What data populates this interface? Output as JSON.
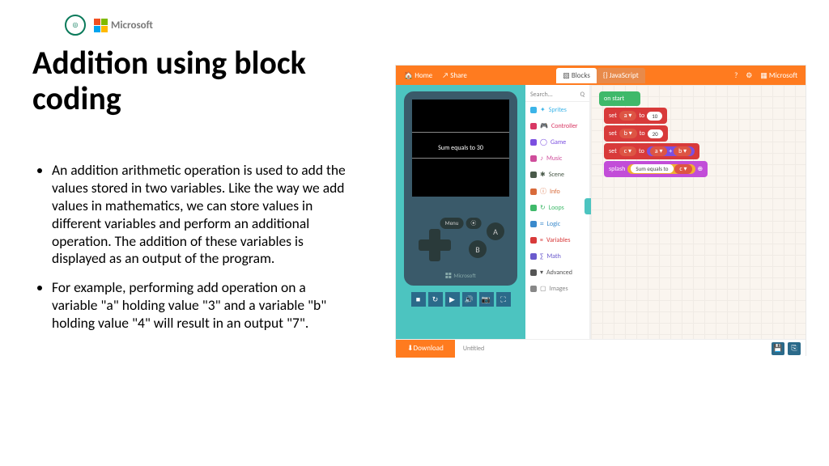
{
  "header": {
    "ms_text": "Microsoft"
  },
  "title": "Addition using block coding",
  "bullets": [
    "An addition arithmetic operation is used to add the values stored in two variables. Like the way we add values in mathematics, we can store values in different variables and perform an additional operation. The addition of these variables is displayed as an output of the program.",
    "For example, performing add operation on a variable \"a\" holding value \"3\" and a variable \"b\" holding value \"4\" will result in an output \"7\"."
  ],
  "shot": {
    "top_left": [
      {
        "icon": "🏠",
        "label": "Home"
      },
      {
        "icon": "↗",
        "label": "Share"
      }
    ],
    "tabs": [
      {
        "icon": "▧",
        "label": "Blocks",
        "active": true
      },
      {
        "icon": "{}",
        "label": "JavaScript",
        "active": false
      }
    ],
    "top_right_icons": [
      "?",
      "⚙"
    ],
    "top_right_ms": "Microsoft",
    "screen_text": "Sum equals to 30",
    "menu_label": "Menu",
    "ms_foot": "Microsoft",
    "toolstrip_icons": [
      "■",
      "↻",
      "▶",
      "🔊",
      "📷",
      "⛶"
    ],
    "search_label": "Search...",
    "search_icon": "Q",
    "categories": [
      {
        "label": "Sprites",
        "color": "#3cb4e8",
        "icon": "✦"
      },
      {
        "label": "Controller",
        "color": "#d83763",
        "icon": "🎮"
      },
      {
        "label": "Game",
        "color": "#7b4fe0",
        "icon": "◯"
      },
      {
        "label": "Music",
        "color": "#cf4d9b",
        "icon": "♪"
      },
      {
        "label": "Scene",
        "color": "#4a5a4a",
        "icon": "✱"
      },
      {
        "label": "Info",
        "color": "#d86a3a",
        "icon": "ⓘ"
      },
      {
        "label": "Loops",
        "color": "#3fb96a",
        "icon": "↻"
      },
      {
        "label": "Logic",
        "color": "#3a8acc",
        "icon": "⌗"
      },
      {
        "label": "Variables",
        "color": "#d83a3a",
        "icon": "≡"
      },
      {
        "label": "Math",
        "color": "#6a5acd",
        "icon": "∑"
      },
      {
        "label": "Advanced",
        "color": "#555",
        "icon": "▾"
      },
      {
        "label": "Images",
        "color": "#888",
        "icon": "▢"
      }
    ],
    "blocks": {
      "onstart": {
        "label": "on start",
        "color": "#3fb96a"
      },
      "seta": {
        "prefix": "set",
        "var": "a ▾",
        "mid": "to",
        "val": "10",
        "color": "#d83a3a"
      },
      "setb": {
        "prefix": "set",
        "var": "b ▾",
        "mid": "to",
        "val": "20",
        "color": "#d83a3a"
      },
      "setc": {
        "prefix": "set",
        "var": "c ▾",
        "mid": "to",
        "lhs": "a ▾",
        "op": "+",
        "rhs": "b ▾",
        "color": "#d83a3a",
        "opcolor": "#7b4fe0"
      },
      "splash": {
        "prefix": "splash",
        "text": "Sum equals to",
        "var": "c ▾",
        "color": "#c24dd8",
        "pillcolor": "#f0b030"
      }
    },
    "download": "Download",
    "untitled": "Untitled",
    "bottom_icons": [
      "💾",
      "⎘"
    ]
  }
}
